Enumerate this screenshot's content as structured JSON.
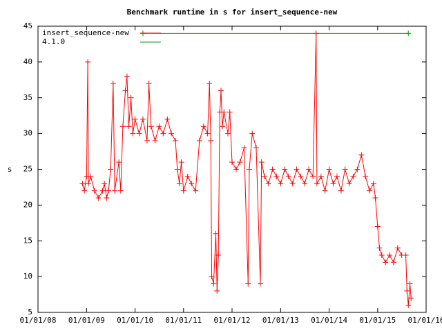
{
  "chart_data": {
    "type": "line",
    "title": "Benchmark runtime in s for insert_sequence-new",
    "y_label": "s",
    "xlim": [
      "2008-01-01",
      "2016-01-01"
    ],
    "xticks": [
      {
        "value": "2008-01-01",
        "label": "01/01/08"
      },
      {
        "value": "2009-01-01",
        "label": "01/01/09"
      },
      {
        "value": "2010-01-01",
        "label": "01/01/10"
      },
      {
        "value": "2011-01-01",
        "label": "01/01/11"
      },
      {
        "value": "2012-01-01",
        "label": "01/01/12"
      },
      {
        "value": "2013-01-01",
        "label": "01/01/13"
      },
      {
        "value": "2014-01-01",
        "label": "01/01/14"
      },
      {
        "value": "2015-01-01",
        "label": "01/01/15"
      },
      {
        "value": "2016-01-01",
        "label": "01/01/16"
      }
    ],
    "ylim": [
      5,
      45
    ],
    "yticks": [
      5,
      10,
      15,
      20,
      25,
      30,
      35,
      40,
      45
    ],
    "grid": false,
    "legend": "top-left",
    "series": [
      {
        "name": "insert_sequence-new",
        "color": "#ff0000",
        "x": [
          "2008-12-01",
          "2008-12-15",
          "2009-01-01",
          "2009-01-10",
          "2009-01-15",
          "2009-02-01",
          "2009-03-01",
          "2009-04-01",
          "2009-05-01",
          "2009-05-15",
          "2009-06-01",
          "2009-06-15",
          "2009-07-01",
          "2009-07-20",
          "2009-08-01",
          "2009-09-01",
          "2009-09-15",
          "2009-10-01",
          "2009-10-20",
          "2009-11-01",
          "2009-11-15",
          "2009-12-01",
          "2009-12-15",
          "2010-01-01",
          "2010-02-01",
          "2010-03-01",
          "2010-04-01",
          "2010-04-15",
          "2010-05-01",
          "2010-06-01",
          "2010-07-01",
          "2010-08-01",
          "2010-09-01",
          "2010-10-01",
          "2010-11-01",
          "2010-11-15",
          "2010-12-01",
          "2010-12-15",
          "2011-01-01",
          "2011-02-01",
          "2011-03-01",
          "2011-04-01",
          "2011-05-01",
          "2011-06-01",
          "2011-07-01",
          "2011-07-15",
          "2011-07-25",
          "2011-08-01",
          "2011-08-15",
          "2011-09-01",
          "2011-09-10",
          "2011-09-20",
          "2011-10-01",
          "2011-10-10",
          "2011-10-20",
          "2011-11-01",
          "2011-12-01",
          "2011-12-15",
          "2012-01-01",
          "2012-02-01",
          "2012-03-01",
          "2012-04-01",
          "2012-05-01",
          "2012-05-10",
          "2012-06-01",
          "2012-07-01",
          "2012-08-01",
          "2012-08-10",
          "2012-09-01",
          "2012-10-01",
          "2012-11-01",
          "2012-12-01",
          "2013-01-01",
          "2013-02-01",
          "2013-03-01",
          "2013-04-01",
          "2013-05-01",
          "2013-06-01",
          "2013-07-01",
          "2013-08-01",
          "2013-09-01",
          "2013-09-25",
          "2013-10-01",
          "2013-11-01",
          "2013-12-01",
          "2014-01-01",
          "2014-02-01",
          "2014-03-01",
          "2014-04-01",
          "2014-05-01",
          "2014-06-01",
          "2014-07-01",
          "2014-08-01",
          "2014-09-01",
          "2014-10-01",
          "2014-11-01",
          "2014-12-01",
          "2014-12-15",
          "2015-01-01",
          "2015-01-15",
          "2015-02-01",
          "2015-03-01",
          "2015-04-01",
          "2015-05-01",
          "2015-06-01",
          "2015-07-01",
          "2015-08-01",
          "2015-08-10",
          "2015-08-20",
          "2015-09-01",
          "2015-09-10"
        ],
        "values": [
          23,
          22,
          24,
          40,
          23,
          24,
          22,
          21,
          22,
          23,
          21,
          22,
          25,
          37,
          22,
          26,
          22,
          31,
          36,
          38,
          31,
          35,
          30,
          32,
          30,
          32,
          29,
          37,
          31,
          29,
          31,
          30,
          32,
          30,
          29,
          25,
          23,
          26,
          22,
          24,
          23,
          22,
          29,
          31,
          30,
          37,
          29,
          10,
          9,
          16,
          8,
          13,
          33,
          36,
          31,
          33,
          30,
          33,
          26,
          25,
          26,
          28,
          9,
          25,
          30,
          28,
          9,
          26,
          24,
          23,
          25,
          24,
          23,
          25,
          24,
          23,
          25,
          24,
          23,
          25,
          24,
          44,
          23,
          24,
          22,
          25,
          23,
          24,
          22,
          25,
          23,
          24,
          25,
          27,
          24,
          22,
          23,
          21,
          17,
          14,
          13,
          12,
          13,
          12,
          14,
          13,
          13,
          8,
          6,
          9,
          7
        ]
      },
      {
        "name": "4.1.0",
        "color": "#00a000",
        "x": [
          "2010-03-01",
          "2015-08-20"
        ],
        "values": [
          44,
          44
        ]
      }
    ]
  }
}
